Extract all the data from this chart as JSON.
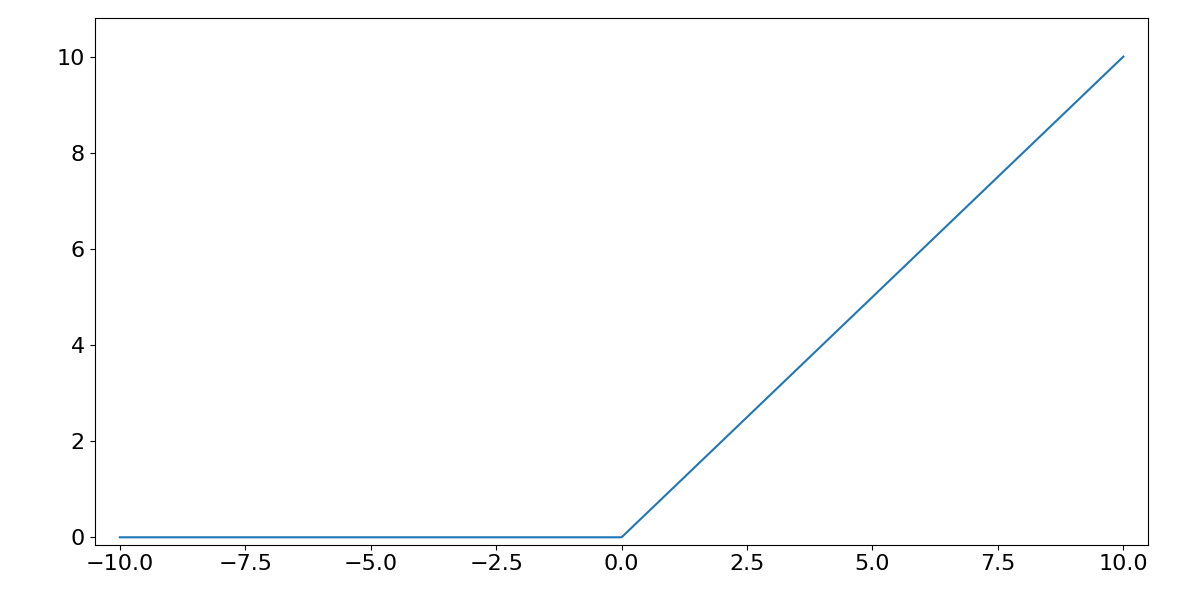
{
  "x_min": -10,
  "x_max": 10,
  "line_color": "#1f77b4",
  "line_width": 1.5,
  "background_color": "#ffffff",
  "xlim": [
    -10.5,
    10.5
  ],
  "ylim": [
    -0.15,
    10.8
  ],
  "x_ticks": [
    -10.0,
    -7.5,
    -5.0,
    -2.5,
    0.0,
    2.5,
    5.0,
    7.5,
    10.0
  ],
  "y_ticks": [
    0,
    2,
    4,
    6,
    8,
    10
  ],
  "tick_labelsize": 16
}
